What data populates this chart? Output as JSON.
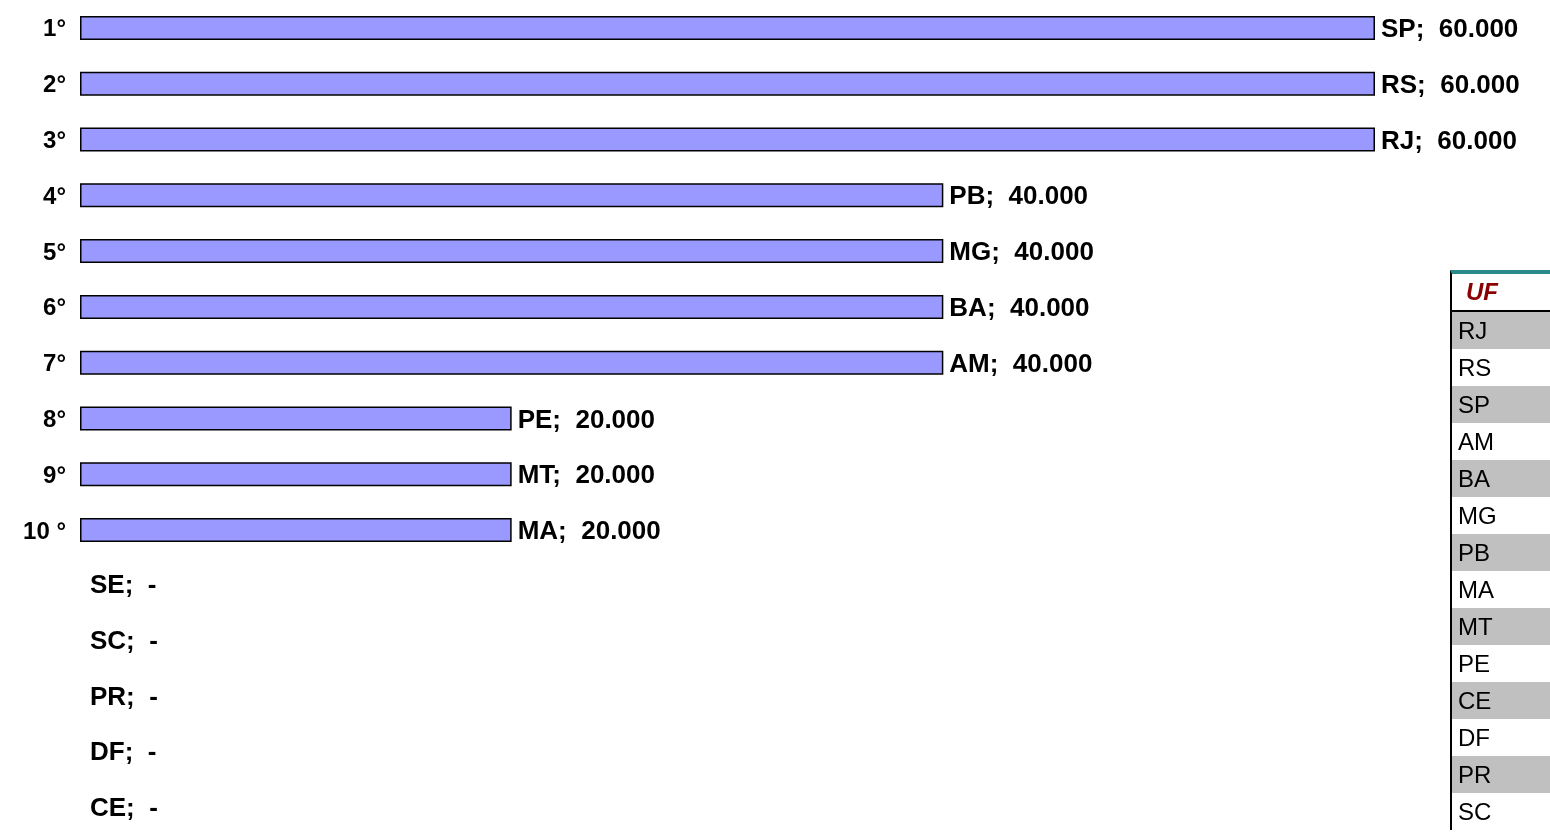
{
  "chart_data": [
    {
      "type": "bar",
      "orientation": "horizontal",
      "categories": [
        "1°",
        "2°",
        "3°",
        "4°",
        "5°",
        "6°",
        "7°",
        "8°",
        "9°",
        "10 °",
        null,
        null,
        null,
        null,
        null
      ],
      "series": [
        {
          "color": "#9999ff",
          "values": [
            60000,
            60000,
            60000,
            40000,
            40000,
            40000,
            40000,
            20000,
            20000,
            20000,
            null,
            null,
            null,
            null,
            null
          ],
          "value_labels": [
            "SP;  60.000",
            "RS;  60.000",
            "RJ;  60.000",
            "PB;  40.000",
            "MG;  40.000",
            "BA;  40.000",
            "AM;  40.000",
            "PE;  20.000",
            "MT;  20.000",
            "MA;  20.000",
            "SE;  -",
            "SC;  -",
            "PR;  -",
            "DF;  -",
            "CE;  -"
          ]
        }
      ]
    },
    {
      "type": "other",
      "title": "UF",
      "categories": [
        "RJ",
        "RS",
        "SP",
        "AM",
        "BA",
        "MG",
        "PB",
        "MA",
        "MT",
        "PE",
        "CE",
        "DF",
        "PR",
        "SC"
      ]
    }
  ]
}
